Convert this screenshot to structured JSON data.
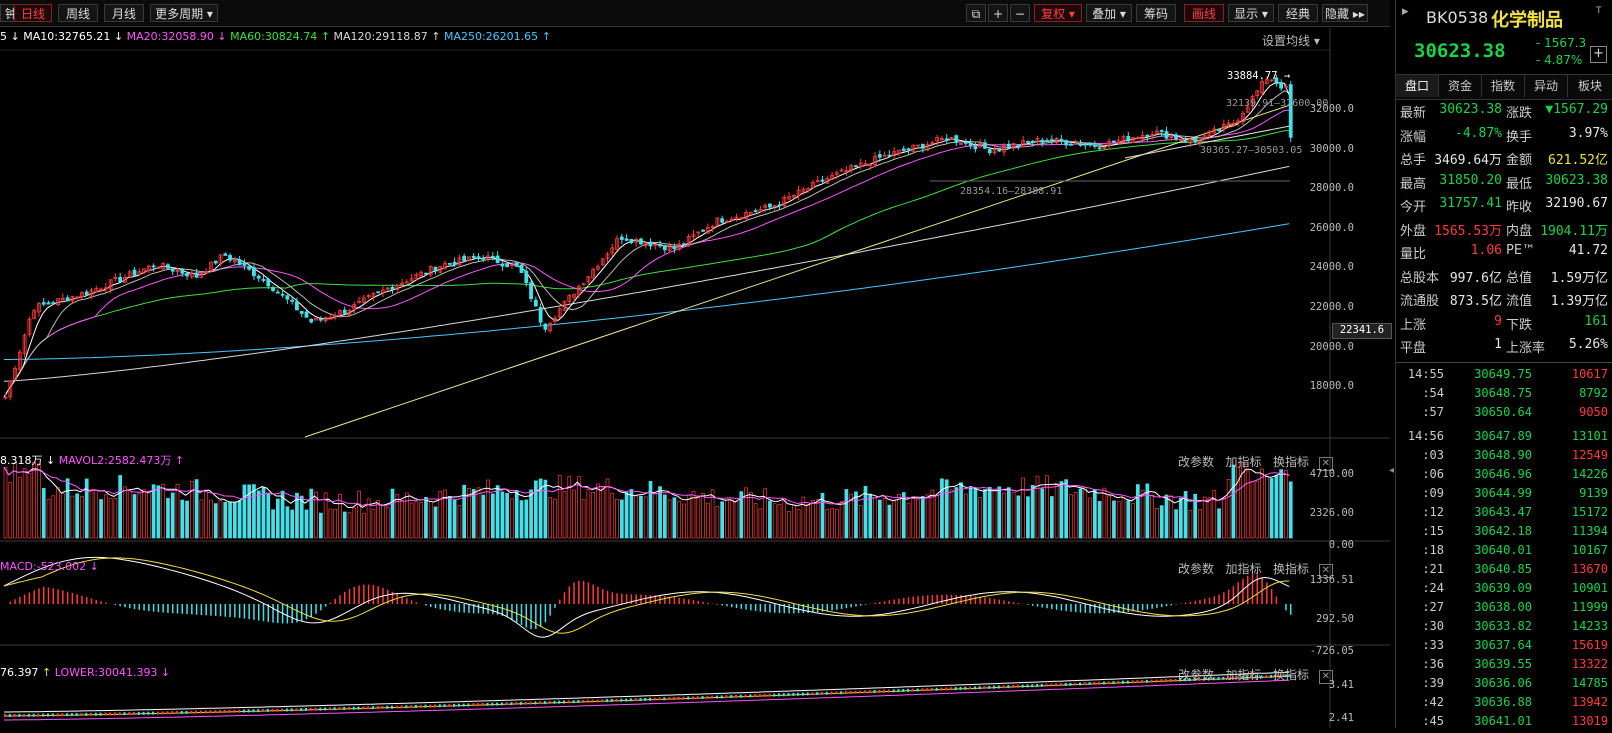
{
  "toolbar": {
    "periods": [
      "钟",
      "日线",
      "周线",
      "月线",
      "更多周期"
    ],
    "buttons": [
      "复权",
      "叠加",
      "筹码",
      "画线",
      "显示",
      "经典",
      "隐藏"
    ]
  },
  "ma_line": {
    "items": [
      {
        "text": "5",
        "color": "#ffffff"
      },
      {
        "text": "MA10:32765.21",
        "color": "#ffffff",
        "arrow": "↓"
      },
      {
        "text": "MA20:32058.90",
        "color": "#ff55ff",
        "arrow": "↓"
      },
      {
        "text": "MA60:30824.74",
        "color": "#3ee03e",
        "arrow": "↑"
      },
      {
        "text": "MA120:29118.87",
        "color": "#d8d8d8",
        "arrow": "↑"
      },
      {
        "text": "MA250:26201.65",
        "color": "#48c8ff",
        "arrow": "↑"
      }
    ],
    "settings": "设置均线"
  },
  "main_chart": {
    "y_ticks": [
      "32000.0",
      "30000.0",
      "28000.0",
      "26000.0",
      "24000.0",
      "22000.0",
      "20000.0",
      "18000.0"
    ],
    "y_tick_values": [
      32000,
      30000,
      28000,
      26000,
      24000,
      22000,
      20000,
      18000
    ],
    "current_price_label": "22341.6",
    "annotations": {
      "high": "33884.77",
      "a1": "32139.91—32600.00",
      "a2": "30365.27—30503.05",
      "a3": "28354.16—28388.91"
    }
  },
  "vol_panel": {
    "header_left": "8.318万",
    "header_mavol": "MAVOL2:2582.473万",
    "tools": [
      "改参数",
      "加指标",
      "换指标"
    ],
    "y_ticks": [
      "4710.00",
      "2326.00",
      "0.00"
    ]
  },
  "macd_panel": {
    "header": "MACD:-523.002",
    "tools": [
      "改参数",
      "加指标",
      "换指标"
    ],
    "y_ticks": [
      "1336.51",
      "292.50",
      "-726.05"
    ]
  },
  "boll_panel": {
    "header_left": "76.397",
    "header_lower": "LOWER:30041.393",
    "tools": [
      "改参数",
      "加指标",
      "换指标"
    ],
    "y_ticks": [
      "3.41",
      "2.41"
    ]
  },
  "right_panel": {
    "code": "BK0538",
    "name": "化学制品",
    "price": "30623.38",
    "change": "- 1567.3",
    "change_pct": "- 4.87%",
    "tabs": [
      "盘口",
      "资金",
      "指数",
      "异动",
      "板块"
    ],
    "stats": [
      {
        "k1": "最新",
        "v1": "30623.38",
        "c1": "green",
        "k2": "涨跌",
        "v2": "▼1567.29",
        "c2": "green"
      },
      {
        "k1": "涨幅",
        "v1": "-4.87%",
        "c1": "green",
        "k2": "换手",
        "v2": "3.97%",
        "c2": "white"
      },
      {
        "k1": "总手",
        "v1": "3469.64万",
        "c1": "white",
        "k2": "金额",
        "v2": "621.52亿",
        "c2": "yellow"
      },
      {
        "k1": "最高",
        "v1": "31850.20",
        "c1": "green",
        "k2": "最低",
        "v2": "30623.38",
        "c2": "green"
      },
      {
        "k1": "今开",
        "v1": "31757.41",
        "c1": "green",
        "k2": "昨收",
        "v2": "32190.67",
        "c2": "white"
      },
      {
        "k1": "外盘",
        "v1": "1565.53万",
        "c1": "red",
        "k2": "内盘",
        "v2": "1904.11万",
        "c2": "green"
      },
      {
        "k1": "量比",
        "v1": "1.06",
        "c1": "red",
        "k2": "PE™",
        "v2": "41.72",
        "c2": "white"
      },
      {
        "k1": "总股本",
        "v1": "997.6亿",
        "c1": "white",
        "k2": "总值",
        "v2": "1.59万亿",
        "c2": "white"
      },
      {
        "k1": "流通股",
        "v1": "873.5亿",
        "c1": "white",
        "k2": "流值",
        "v2": "1.39万亿",
        "c2": "white"
      },
      {
        "k1": "上涨",
        "v1": "9",
        "c1": "red",
        "k2": "下跌",
        "v2": "161",
        "c2": "green"
      },
      {
        "k1": "平盘",
        "v1": "1",
        "c1": "white",
        "k2": "上涨率",
        "v2": "5.26%",
        "c2": "white"
      }
    ],
    "ticks": [
      {
        "t": "14:55",
        "p": "30649.75",
        "v": "10617",
        "vc": "red"
      },
      {
        "t": ":54",
        "p": "30648.75",
        "v": "8792",
        "vc": "green"
      },
      {
        "t": ":57",
        "p": "30650.64",
        "v": "9050",
        "vc": "red"
      },
      {
        "t": "14:56",
        "p": "30647.89",
        "v": "13101",
        "vc": "green"
      },
      {
        "t": ":03",
        "p": "30648.90",
        "v": "12549",
        "vc": "red"
      },
      {
        "t": ":06",
        "p": "30646.96",
        "v": "14226",
        "vc": "green"
      },
      {
        "t": ":09",
        "p": "30644.99",
        "v": "9139",
        "vc": "green"
      },
      {
        "t": ":12",
        "p": "30643.47",
        "v": "15172",
        "vc": "green"
      },
      {
        "t": ":15",
        "p": "30642.18",
        "v": "11394",
        "vc": "green"
      },
      {
        "t": ":18",
        "p": "30640.01",
        "v": "10167",
        "vc": "green"
      },
      {
        "t": ":21",
        "p": "30640.85",
        "v": "13670",
        "vc": "red"
      },
      {
        "t": ":24",
        "p": "30639.09",
        "v": "10901",
        "vc": "green"
      },
      {
        "t": ":27",
        "p": "30638.00",
        "v": "11999",
        "vc": "green"
      },
      {
        "t": ":30",
        "p": "30633.82",
        "v": "14233",
        "vc": "green"
      },
      {
        "t": ":33",
        "p": "30637.64",
        "v": "15619",
        "vc": "red"
      },
      {
        "t": ":36",
        "p": "30639.55",
        "v": "13322",
        "vc": "red"
      },
      {
        "t": ":39",
        "p": "30636.06",
        "v": "14785",
        "vc": "green"
      },
      {
        "t": ":42",
        "p": "30636.88",
        "v": "13942",
        "vc": "red"
      },
      {
        "t": ":45",
        "p": "30641.01",
        "v": "13019",
        "vc": "red"
      }
    ]
  },
  "colors": {
    "up": "#ff3b3b",
    "down": "#44e0ea",
    "ma5": "#ffffff",
    "ma20": "#ff55ff",
    "ma60": "#3ee03e",
    "ma120": "#d8d8d8",
    "ma250": "#48c8ff",
    "trendline": "#f0e68c"
  },
  "icons": [
    "lock-icon",
    "plus-icon",
    "minus-icon",
    "dropdown-arrow-icon",
    "collapse-icon",
    "expand-right-icon",
    "add-watchlist-icon"
  ]
}
